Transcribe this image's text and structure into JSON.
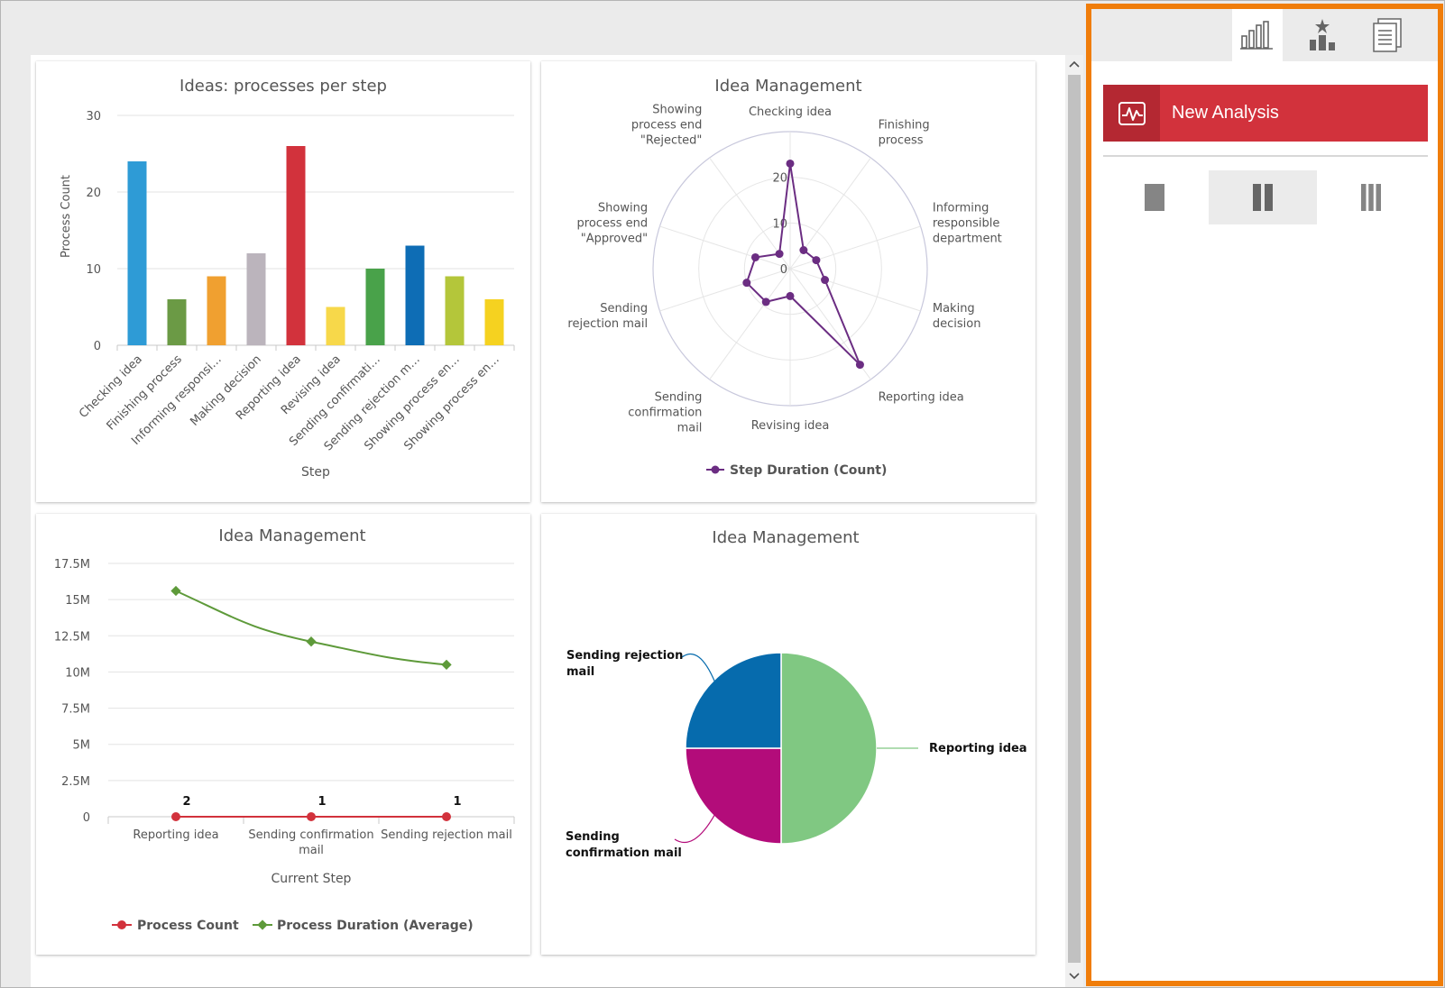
{
  "panel": {
    "tabs": [
      {
        "icon": "bar-chart-icon"
      },
      {
        "icon": "ranking-star-icon"
      },
      {
        "icon": "documents-icon"
      }
    ],
    "new_analysis_label": "New Analysis",
    "layouts": [
      {
        "icon": "single-column-layout-icon"
      },
      {
        "icon": "two-column-layout-icon",
        "selected": true
      },
      {
        "icon": "three-column-layout-icon"
      }
    ]
  },
  "colors": {
    "panel_border": "#f07d0a",
    "new_analysis_bg": "#d2323c"
  },
  "chart_data": [
    {
      "type": "bar",
      "title": "Ideas: processes per step",
      "xlabel": "Step",
      "ylabel": "Process Count",
      "ylim": [
        0,
        30
      ],
      "yticks": [
        "0",
        "10",
        "20",
        "30"
      ],
      "categories": [
        "Checking idea",
        "Finishing process",
        "Informing responsi…",
        "Making decision",
        "Reporting idea",
        "Revising idea",
        "Sending confirmati…",
        "Sending rejection m…",
        "Showing process en…",
        "Showing process en…"
      ],
      "values": [
        24,
        6,
        9,
        12,
        26,
        5,
        10,
        13,
        9,
        6
      ],
      "colors": [
        "#2e9bd6",
        "#6b9a45",
        "#f0a030",
        "#bbb4bc",
        "#d2323c",
        "#f7d84a",
        "#49a24a",
        "#0e6db5",
        "#b4c63a",
        "#f5d220"
      ],
      "grid": true
    },
    {
      "type": "radar",
      "title": "Idea Management",
      "categories": [
        "Checking idea",
        "Finishing process",
        "Informing responsible department",
        "Making decision",
        "Reporting idea",
        "Revising idea",
        "Sending confirmation mail",
        "Sending rejection mail",
        "Showing process end \"Approved\"",
        "Showing process end \"Rejected\""
      ],
      "series": [
        {
          "name": "Step Duration (Count)",
          "values": [
            23,
            5,
            6,
            8,
            26,
            6,
            9,
            10,
            8,
            4
          ]
        }
      ],
      "rticks": [
        "0",
        "10",
        "20"
      ],
      "rmax": 30,
      "legend": "bottom"
    },
    {
      "type": "line",
      "title": "Idea Management",
      "xlabel": "Current Step",
      "categories": [
        "Reporting idea",
        "Sending confirmation mail",
        "Sending rejection mail"
      ],
      "yticks": [
        "0",
        "2.5M",
        "5M",
        "7.5M",
        "10M",
        "12.5M",
        "15M",
        "17.5M"
      ],
      "ylim": [
        0,
        17500000
      ],
      "series": [
        {
          "name": "Process Count",
          "values": [
            2,
            1,
            1
          ],
          "labels": [
            "2",
            "1",
            "1"
          ],
          "color": "#d2323c"
        },
        {
          "name": "Process Duration (Average)",
          "values": [
            15600000,
            12100000,
            10500000
          ],
          "color": "#5e9a3a"
        }
      ],
      "legend": "bottom"
    },
    {
      "type": "pie",
      "title": "Idea Management",
      "categories": [
        "Reporting idea",
        "Sending confirmation mail",
        "Sending rejection mail"
      ],
      "values": [
        2,
        1,
        1
      ],
      "colors": [
        "#80c882",
        "#b30c7a",
        "#066bad"
      ]
    }
  ]
}
